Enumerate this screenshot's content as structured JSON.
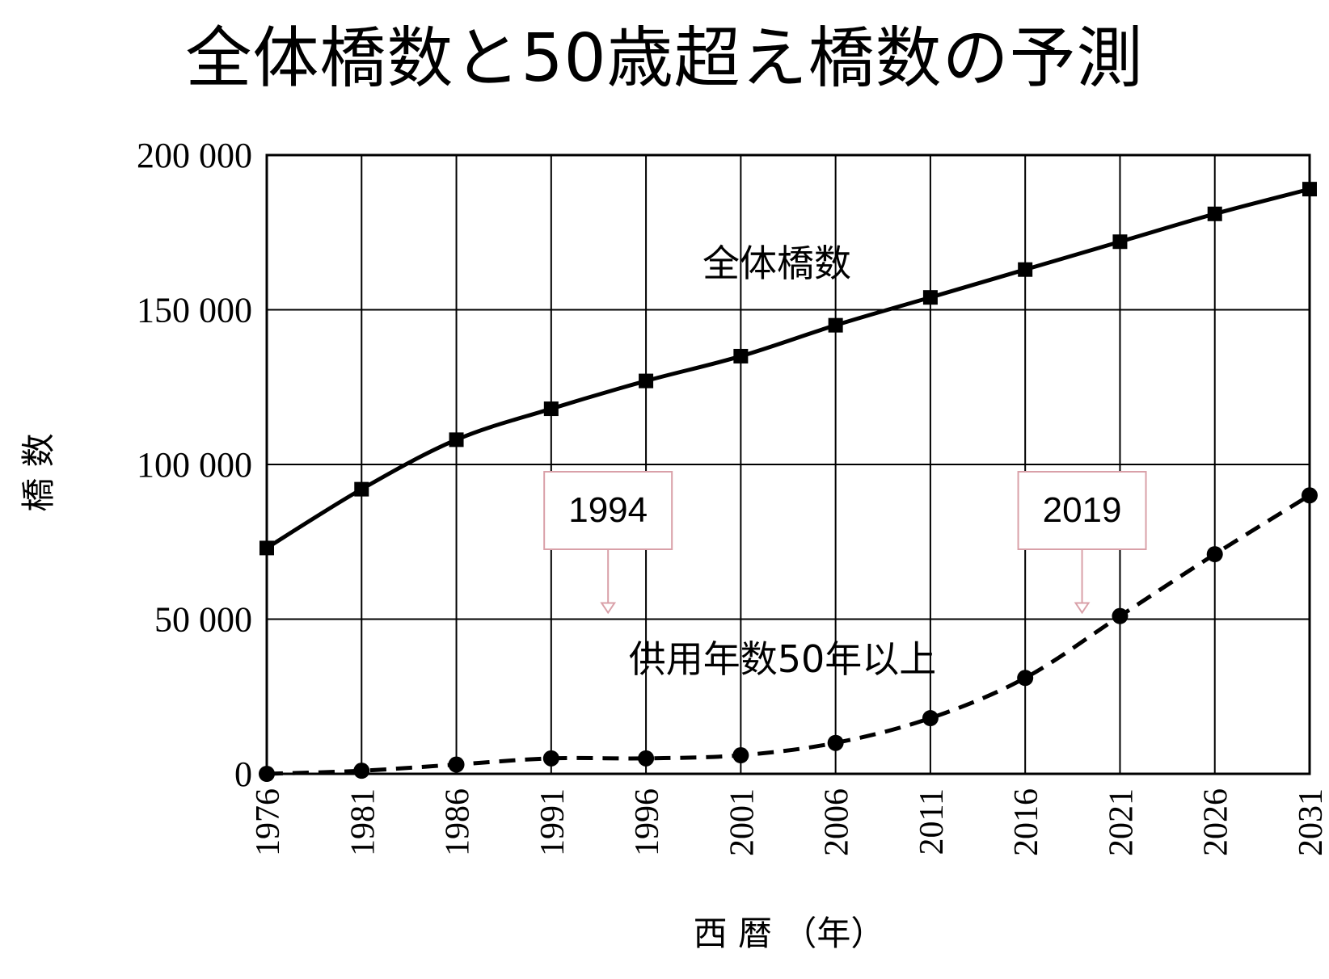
{
  "title": "全体橋数と50歳超え橋数の予測",
  "chart_data": {
    "type": "line",
    "x": [
      1976,
      1981,
      1986,
      1991,
      1996,
      2001,
      2006,
      2011,
      2016,
      2021,
      2026,
      2031
    ],
    "xlabel": "西 暦 （年）",
    "ylabel": "橋 数",
    "ylim": [
      0,
      200000
    ],
    "yticks": [
      0,
      50000,
      100000,
      150000,
      200000
    ],
    "ytick_labels": [
      "0",
      "50 000",
      "100 000",
      "150 000",
      "200 000"
    ],
    "xtick_labels": [
      "1976",
      "1981",
      "1986",
      "1991",
      "1996",
      "2001",
      "2006",
      "2011",
      "2016",
      "2021",
      "2026",
      "2031"
    ],
    "grid": true,
    "series": [
      {
        "name": "全体橋数",
        "style": "solid",
        "marker": "square",
        "values": [
          73000,
          92000,
          108000,
          118000,
          127000,
          135000,
          145000,
          154000,
          163000,
          172000,
          181000,
          189000
        ]
      },
      {
        "name": "供用年数50年以上",
        "style": "dashed",
        "marker": "circle",
        "values": [
          0,
          1000,
          3000,
          5000,
          5000,
          6000,
          10000,
          18000,
          31000,
          51000,
          71000,
          90000
        ]
      }
    ],
    "annotations": [
      {
        "text": "1994",
        "x": 1994,
        "y": 50000
      },
      {
        "text": "2019",
        "x": 2019,
        "y": 50000
      }
    ],
    "colors": {
      "line": "#000000",
      "grid": "#000000",
      "callout_border": "#d9a0a8",
      "callout_arrow": "#d9a0a8"
    }
  }
}
